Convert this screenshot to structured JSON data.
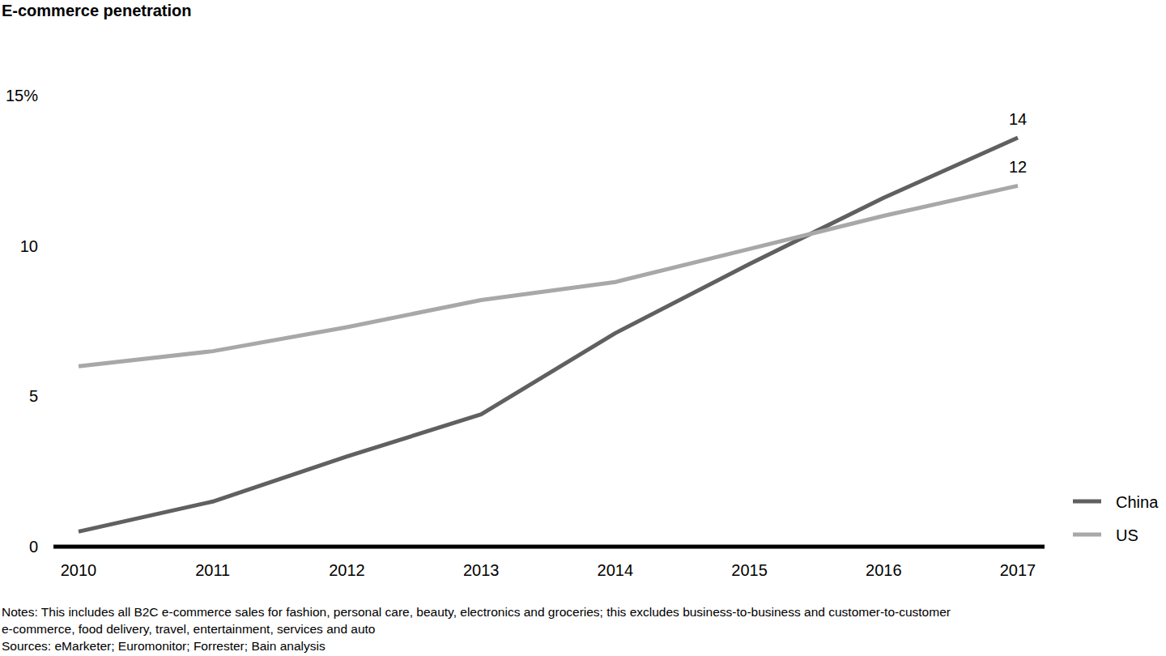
{
  "chart_data": {
    "type": "line",
    "title": "E-commerce penetration",
    "categories": [
      "2010",
      "2011",
      "2012",
      "2013",
      "2014",
      "2015",
      "2016",
      "2017"
    ],
    "series": [
      {
        "name": "China",
        "color": "#606060",
        "values": [
          0.5,
          1.5,
          3.0,
          4.4,
          7.1,
          9.4,
          11.6,
          13.6
        ],
        "value_labels": [
          null,
          null,
          null,
          null,
          null,
          null,
          null,
          "14"
        ]
      },
      {
        "name": "US",
        "color": "#a8a8a8",
        "values": [
          6.0,
          6.5,
          7.3,
          8.2,
          8.8,
          9.9,
          11.0,
          12.0
        ],
        "value_labels": [
          null,
          null,
          null,
          null,
          null,
          null,
          null,
          "12"
        ]
      }
    ],
    "ylim": [
      0,
      15
    ],
    "yticks": [
      0,
      5,
      10,
      {
        "value": 15,
        "label": "15%"
      }
    ],
    "grid": false,
    "legend": "right",
    "notes": [
      "Notes: This includes all B2C e-commerce sales for fashion, personal care, beauty, electronics and groceries; this excludes business-to-business and customer-to-customer",
      "e-commerce, food delivery, travel, entertainment, services and auto"
    ],
    "source": "Sources: eMarketer; Euromonitor; Forrester; Bain analysis"
  }
}
